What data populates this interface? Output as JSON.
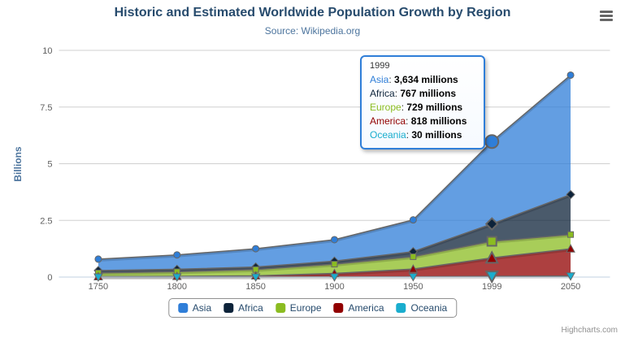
{
  "chart_data": {
    "type": "area",
    "stacking": "normal",
    "title": "Historic and Estimated Worldwide Population Growth by Region",
    "subtitle": "Source: Wikipedia.org",
    "categories": [
      "1750",
      "1800",
      "1850",
      "1900",
      "1950",
      "1999",
      "2050"
    ],
    "series": [
      {
        "name": "Asia",
        "color": "#2f7ed8",
        "marker": "circle",
        "values": [
          502,
          635,
          809,
          947,
          1402,
          3634,
          5268
        ]
      },
      {
        "name": "Africa",
        "color": "#0d233a",
        "marker": "diamond",
        "values": [
          106,
          107,
          111,
          133,
          221,
          767,
          1766
        ]
      },
      {
        "name": "Europe",
        "color": "#8bbc21",
        "marker": "square",
        "values": [
          163,
          203,
          276,
          408,
          547,
          729,
          628
        ]
      },
      {
        "name": "America",
        "color": "#910000",
        "marker": "triangle",
        "values": [
          18,
          31,
          54,
          156,
          339,
          818,
          1201
        ]
      },
      {
        "name": "Oceania",
        "color": "#1aadce",
        "marker": "triangle-down",
        "values": [
          2,
          2,
          2,
          6,
          13,
          30,
          46
        ]
      }
    ],
    "values_unit": "millions",
    "ylabel": "Billions",
    "yticks": [
      0,
      2.5,
      5,
      7.5,
      10
    ],
    "ylim": [
      0,
      10
    ],
    "grid": "horizontal",
    "legend_position": "bottom-center",
    "legend_entries": [
      "Asia",
      "Africa",
      "Europe",
      "America",
      "Oceania"
    ],
    "line_color": "#666666",
    "gridline_color": "#d0d0d0",
    "axis_line_color": "#c0d0e0"
  },
  "tooltip": {
    "header": "1999",
    "category_index": 5,
    "hovered_series": "Asia",
    "border_color": "#2f7ed8",
    "rows": [
      {
        "name": "Asia",
        "color": "#2f7ed8",
        "value": "3,634 millions"
      },
      {
        "name": "Africa",
        "color": "#0d233a",
        "value": "767 millions"
      },
      {
        "name": "Europe",
        "color": "#8bbc21",
        "value": "729 millions"
      },
      {
        "name": "America",
        "color": "#910000",
        "value": "818 millions"
      },
      {
        "name": "Oceania",
        "color": "#1aadce",
        "value": "30 millions"
      }
    ]
  },
  "credits": {
    "label": "Highcharts.com"
  }
}
